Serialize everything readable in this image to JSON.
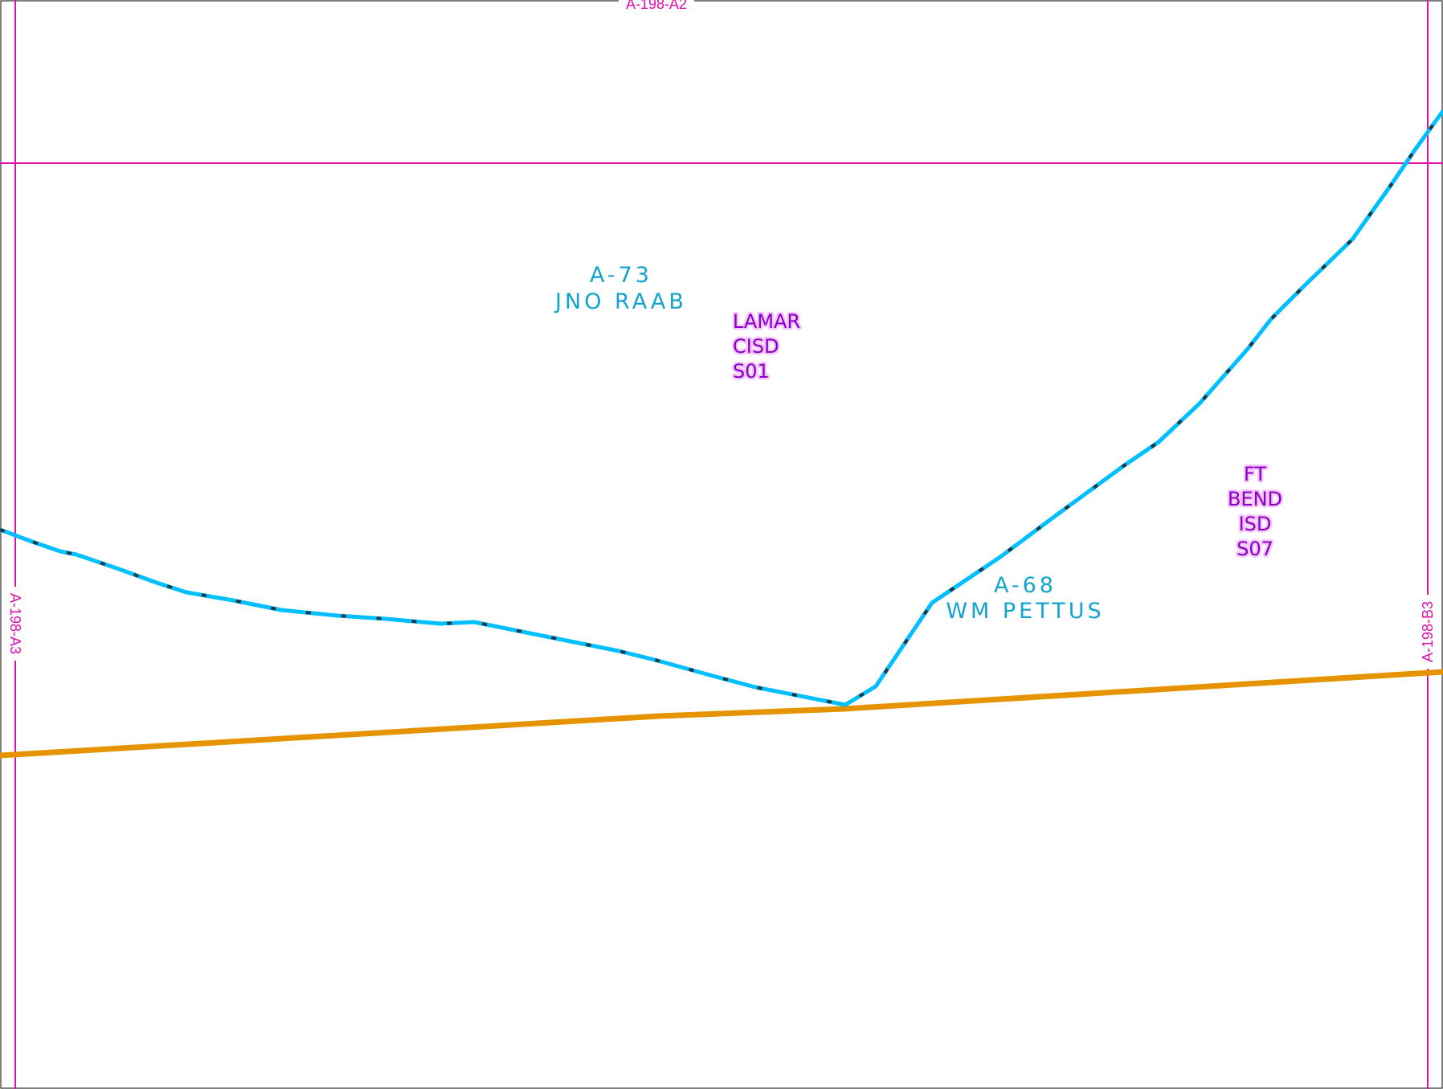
{
  "map": {
    "colors": {
      "grid": "#e010b0",
      "abstract_boundary": "#00bfff",
      "abstract_boundary_dash": "#1a3a4a",
      "road": "#e59400",
      "abstract_text": "#12a3cf",
      "district_text": "#8a00c4",
      "district_halo": "#f4c6ff",
      "frame": "#555555"
    },
    "grid_labels": {
      "top": "A-198-A2",
      "left": "A-198-A3",
      "right": "A-198-B3"
    },
    "abstracts": [
      {
        "id": "a73",
        "number": "A-73",
        "name": "JNO RAAB"
      },
      {
        "id": "a68",
        "number": "A-68",
        "name": "WM PETTUS"
      }
    ],
    "school_districts": [
      {
        "id": "lamar",
        "lines": [
          "LAMAR",
          "CISD",
          "S01"
        ]
      },
      {
        "id": "ftbend",
        "lines": [
          "FT",
          "BEND",
          "ISD",
          "S07"
        ]
      }
    ]
  }
}
